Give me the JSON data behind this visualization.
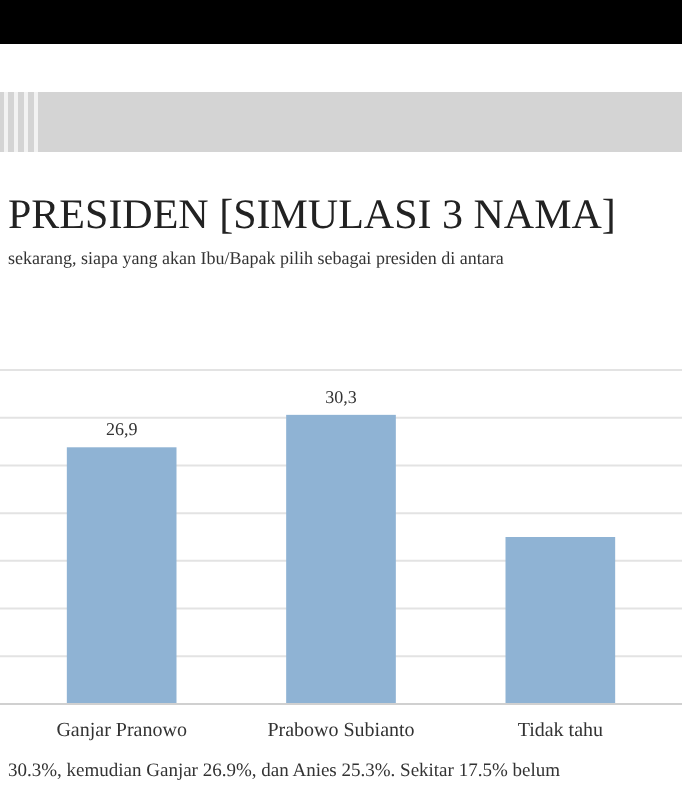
{
  "chart_data": {
    "type": "bar",
    "title": "PRESIDEN [SIMULASI 3 NAMA]",
    "subtitle": "sekarang, siapa yang akan Ibu/Bapak pilih sebagai presiden di antara",
    "categories": [
      "Ganjar Pranowo",
      "Prabowo Subianto",
      "Tidak tahu"
    ],
    "values": [
      26.9,
      30.3,
      17.5
    ],
    "value_labels": [
      "26,9",
      "30,3",
      null
    ],
    "color": "#8fb3d4",
    "ylim": [
      0,
      35
    ],
    "yticks": [
      {
        "value": 0,
        "label": null
      },
      {
        "value": 5,
        "label": null
      },
      {
        "value": 10,
        "label": null
      },
      {
        "value": 15,
        "label": null
      },
      {
        "value": 20,
        "label": null
      },
      {
        "value": 25,
        "label": null
      },
      {
        "value": 30,
        "label": null
      },
      {
        "value": 35,
        "label": null
      }
    ],
    "tick_labels": "x",
    "grid": "y",
    "annotations": [
      "30.3%, kemudian Ganjar 26.9%, dan Anies 25.3%. Sekitar 17.5% belum"
    ]
  }
}
